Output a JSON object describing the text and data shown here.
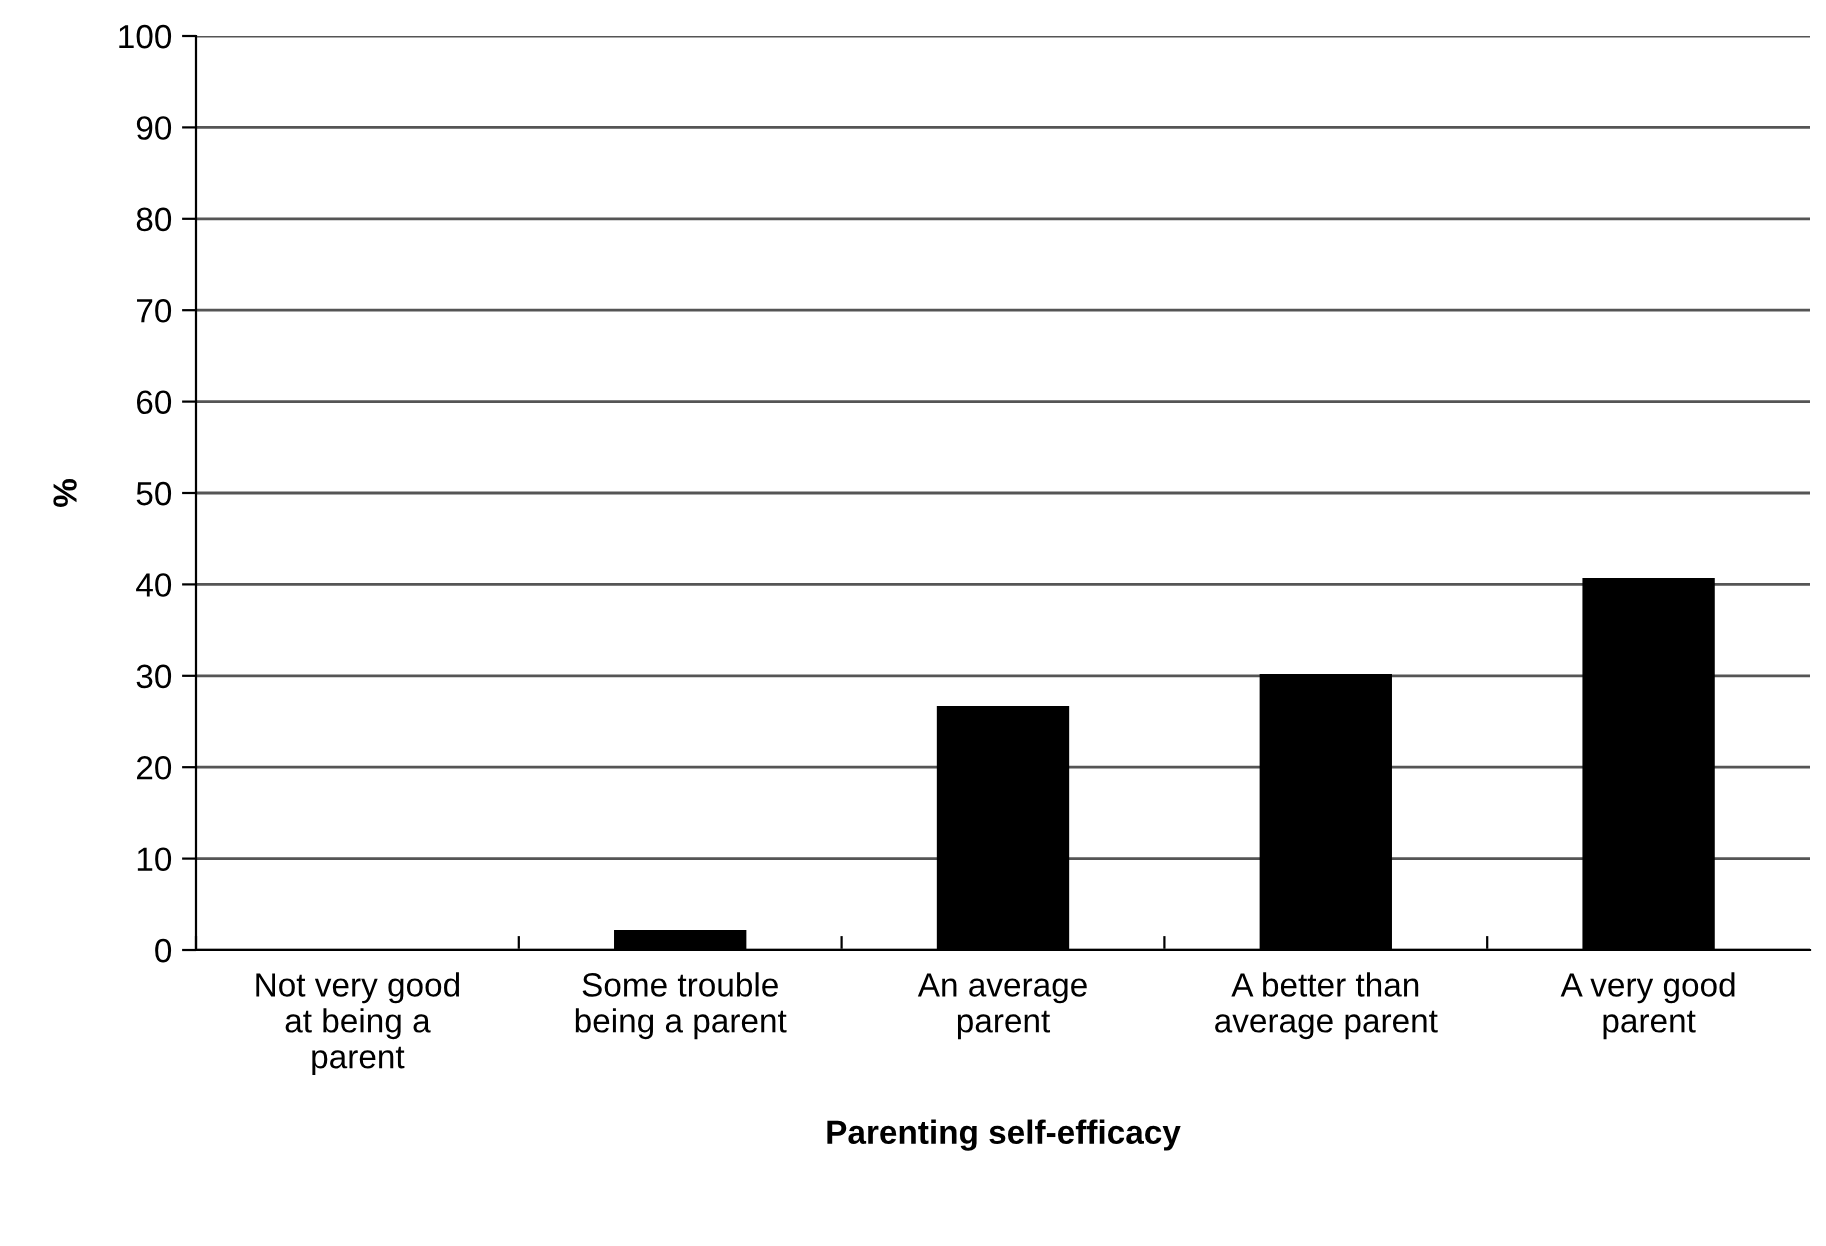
{
  "chart_data": {
    "type": "bar",
    "xlabel": "Parenting self-efficacy",
    "ylabel": "%",
    "categories": [
      "Not very good\nat being a\nparent",
      "Some trouble\nbeing a parent",
      "An average\nparent",
      "A better than\naverage parent",
      "A very good\nparent"
    ],
    "values": [
      0,
      2.2,
      26.7,
      30.2,
      40.7
    ],
    "color": "#000000",
    "ylim": [
      0,
      100
    ],
    "yticks": [
      0,
      10,
      20,
      30,
      40,
      50,
      60,
      70,
      80,
      90,
      100
    ],
    "grid": "y",
    "legend": false
  }
}
